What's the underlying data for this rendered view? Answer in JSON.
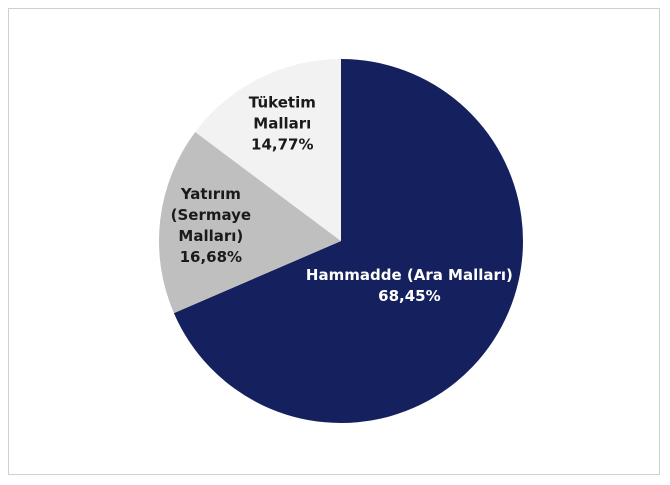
{
  "chart_data": {
    "type": "pie",
    "categories": [
      "Hammadde (Ara Malları)",
      "Yatırım (Sermaye Malları)",
      "Tüketim Malları"
    ],
    "values": [
      68.45,
      16.68,
      14.77
    ],
    "value_labels": [
      "68,45%",
      "16,68%",
      "14,77%"
    ],
    "colors": [
      "#14215e",
      "#bfbfbf",
      "#f2f2f2"
    ]
  }
}
